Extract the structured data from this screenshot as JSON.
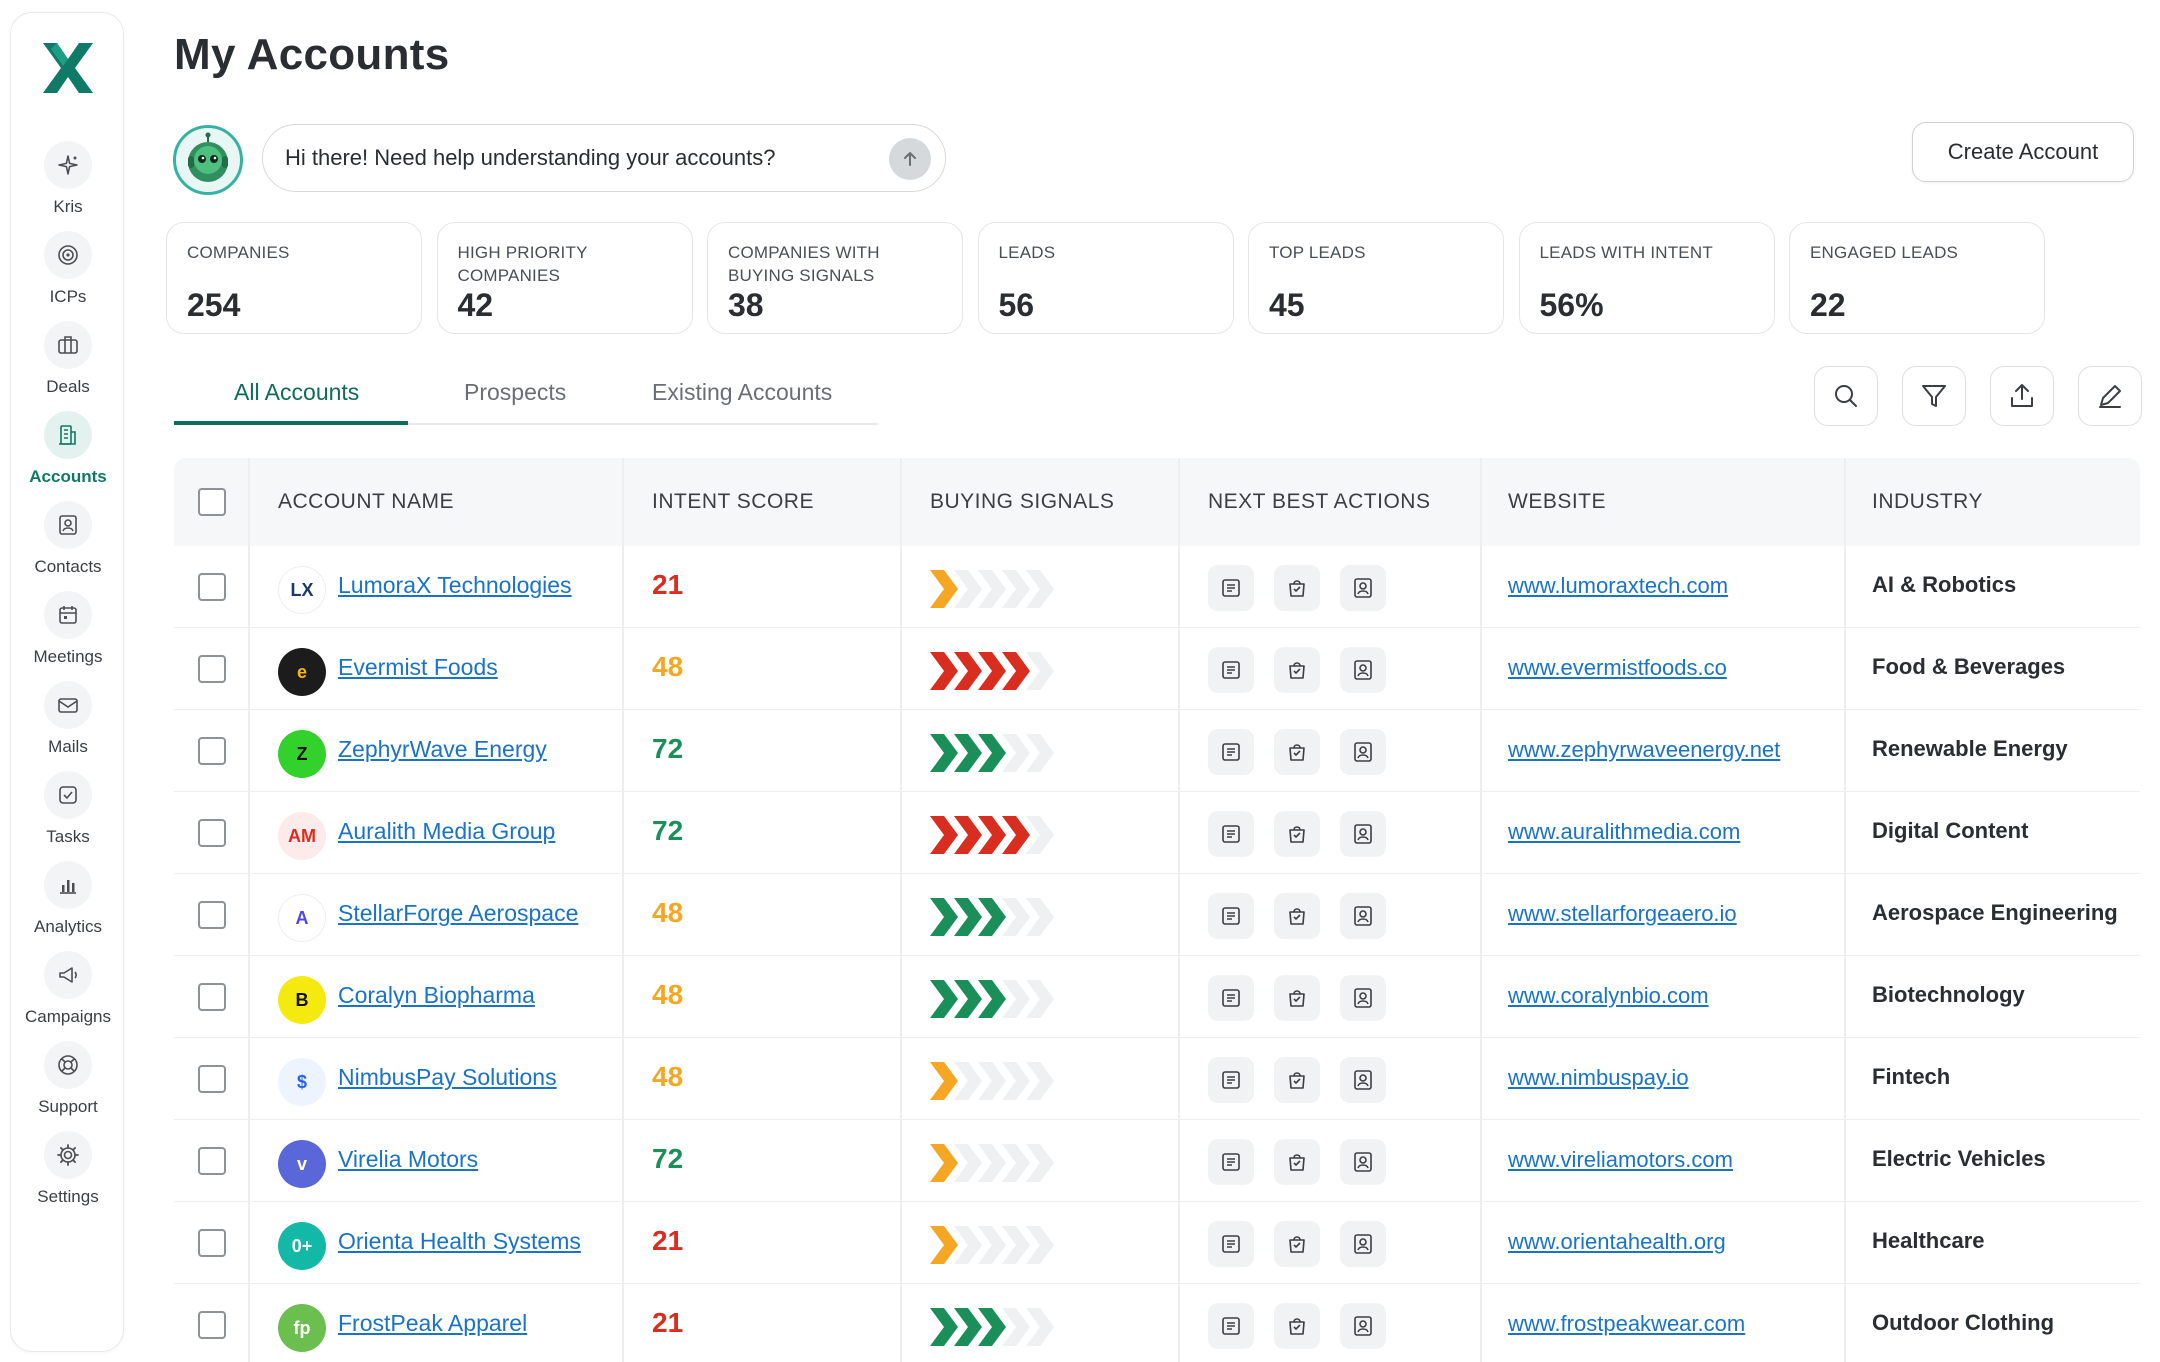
{
  "nav": {
    "items": [
      {
        "key": "kris",
        "label": "Kris",
        "icon": "sparkle-icon"
      },
      {
        "key": "icps",
        "label": "ICPs",
        "icon": "target-icon"
      },
      {
        "key": "deals",
        "label": "Deals",
        "icon": "briefcase-icon"
      },
      {
        "key": "accounts",
        "label": "Accounts",
        "icon": "building-icon",
        "active": true
      },
      {
        "key": "contacts",
        "label": "Contacts",
        "icon": "contact-card-icon"
      },
      {
        "key": "meetings",
        "label": "Meetings",
        "icon": "calendar-icon"
      },
      {
        "key": "mails",
        "label": "Mails",
        "icon": "mail-icon"
      },
      {
        "key": "tasks",
        "label": "Tasks",
        "icon": "checkbox-icon"
      },
      {
        "key": "analytics",
        "label": "Analytics",
        "icon": "bar-chart-icon"
      },
      {
        "key": "campaigns",
        "label": "Campaigns",
        "icon": "megaphone-icon"
      },
      {
        "key": "support",
        "label": "Support",
        "icon": "lifebuoy-icon"
      },
      {
        "key": "settings",
        "label": "Settings",
        "icon": "gear-icon"
      }
    ]
  },
  "header": {
    "title": "My Accounts",
    "chat_prompt": "Hi there! Need help understanding your accounts?",
    "create_label": "Create Account"
  },
  "stats": [
    {
      "label": "COMPANIES",
      "value": "254"
    },
    {
      "label": "HIGH PRIORITY COMPANIES",
      "value": "42"
    },
    {
      "label": "COMPANIES WITH BUYING SIGNALS",
      "value": "38"
    },
    {
      "label": "LEADS",
      "value": "56"
    },
    {
      "label": "TOP LEADS",
      "value": "45"
    },
    {
      "label": "LEADS WITH INTENT",
      "value": "56%"
    },
    {
      "label": "ENGAGED LEADS",
      "value": "22"
    }
  ],
  "tabs": [
    {
      "label": "All Accounts",
      "active": true
    },
    {
      "label": "Prospects"
    },
    {
      "label": "Existing Accounts"
    }
  ],
  "toolbar": {
    "icons": [
      "search-icon",
      "filter-icon",
      "export-icon",
      "edit-icon"
    ]
  },
  "table": {
    "columns": [
      "ACCOUNT NAME",
      "INTENT SCORE",
      "BUYING SIGNALS",
      "NEXT BEST ACTIONS",
      "WEBSITE",
      "INDUSTRY"
    ],
    "rows": [
      {
        "name": "LumoraX Technologies",
        "logo_text": "LX",
        "logo_bg": "#ffffff",
        "logo_fg": "#1b3a6b",
        "score": "21",
        "score_color": "#d92d20",
        "signal_level": 1,
        "signal_color": "#f5a623",
        "website": "www.lumoraxtech.com",
        "industry": "AI & Robotics"
      },
      {
        "name": "Evermist Foods",
        "logo_text": "e",
        "logo_bg": "#1c1c1c",
        "logo_fg": "#f5b50a",
        "score": "48",
        "score_color": "#f5a623",
        "signal_level": 4,
        "signal_color": "#d92d20",
        "website": "www.evermistfoods.co",
        "industry": "Food & Beverages"
      },
      {
        "name": "ZephyrWave Energy",
        "logo_text": "Z",
        "logo_bg": "#33d12c",
        "logo_fg": "#111111",
        "score": "72",
        "score_color": "#1a8f5a",
        "signal_level": 3,
        "signal_color": "#1a8f5a",
        "website": "www.zephyrwaveenergy.net",
        "industry": "Renewable Energy"
      },
      {
        "name": "Auralith Media Group",
        "logo_text": "AM",
        "logo_bg": "#fdeaea",
        "logo_fg": "#d92d20",
        "score": "72",
        "score_color": "#1a8f5a",
        "signal_level": 4,
        "signal_color": "#d92d20",
        "website": "www.auralithmedia.com",
        "industry": "Digital Content"
      },
      {
        "name": "StellarForge Aerospace",
        "logo_text": "A",
        "logo_bg": "#ffffff",
        "logo_fg": "#4f46e5",
        "score": "48",
        "score_color": "#f5a623",
        "signal_level": 3,
        "signal_color": "#1a8f5a",
        "website": "www.stellarforgeaero.io",
        "industry": "Aerospace Engineering"
      },
      {
        "name": "Coralyn Biopharma",
        "logo_text": "B",
        "logo_bg": "#f4ea0f",
        "logo_fg": "#111111",
        "score": "48",
        "score_color": "#f5a623",
        "signal_level": 3,
        "signal_color": "#1a8f5a",
        "website": "www.coralynbio.com",
        "industry": "Biotechnology"
      },
      {
        "name": "NimbusPay Solutions",
        "logo_text": "$",
        "logo_bg": "#eef4ff",
        "logo_fg": "#2563eb",
        "score": "48",
        "score_color": "#f5a623",
        "signal_level": 1,
        "signal_color": "#f5a623",
        "website": "www.nimbuspay.io",
        "industry": "Fintech"
      },
      {
        "name": "Virelia Motors",
        "logo_text": "v",
        "logo_bg": "#5a67d8",
        "logo_fg": "#ffffff",
        "score": "72",
        "score_color": "#1a8f5a",
        "signal_level": 1,
        "signal_color": "#f5a623",
        "website": "www.vireliamotors.com",
        "industry": "Electric Vehicles"
      },
      {
        "name": "Orienta Health Systems",
        "logo_text": "0+",
        "logo_bg": "#14b8a6",
        "logo_fg": "#ffffff",
        "score": "21",
        "score_color": "#d92d20",
        "signal_level": 1,
        "signal_color": "#f5a623",
        "website": "www.orientahealth.org",
        "industry": "Healthcare"
      },
      {
        "name": "FrostPeak Apparel",
        "logo_text": "fp",
        "logo_bg": "#6bbf4e",
        "logo_fg": "#ffffff",
        "score": "21",
        "score_color": "#d92d20",
        "signal_level": 3,
        "signal_color": "#1a8f5a",
        "website": "www.frostpeakwear.com",
        "industry": "Outdoor Clothing"
      }
    ]
  }
}
